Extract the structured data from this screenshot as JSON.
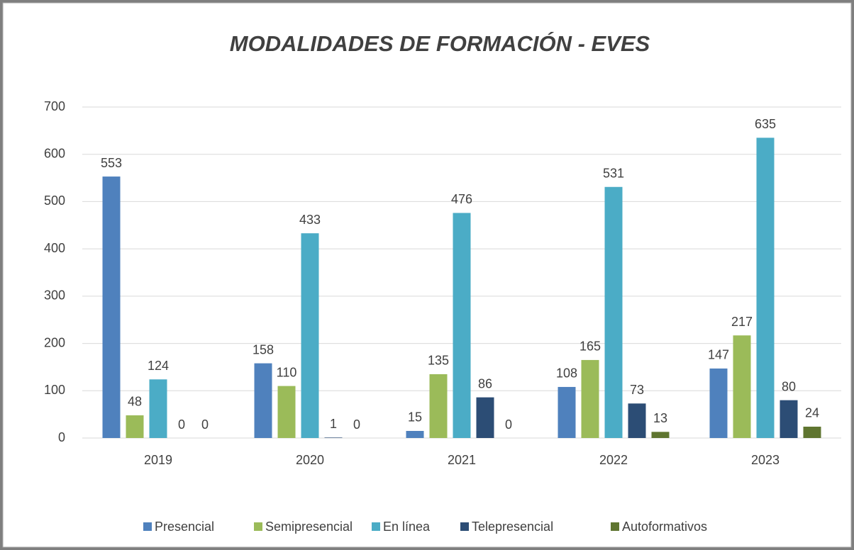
{
  "chart_data": {
    "type": "bar",
    "title": "MODALIDADES DE FORMACIÓN - EVES",
    "categories": [
      "2019",
      "2020",
      "2021",
      "2022",
      "2023"
    ],
    "series": [
      {
        "name": "Presencial",
        "color": "#4f81bd",
        "values": [
          553,
          158,
          15,
          108,
          147
        ]
      },
      {
        "name": "Semipresencial",
        "color": "#9bbb59",
        "values": [
          48,
          110,
          135,
          165,
          217
        ]
      },
      {
        "name": "En línea",
        "color": "#4bacc6",
        "values": [
          124,
          433,
          476,
          531,
          635
        ]
      },
      {
        "name": "Telepresencial",
        "color": "#2c4d75",
        "values": [
          0,
          1,
          86,
          73,
          80
        ]
      },
      {
        "name": "Autoformativos",
        "color": "#5f7530",
        "values": [
          0,
          0,
          0,
          13,
          24
        ]
      }
    ],
    "ylim": [
      0,
      700
    ],
    "yticks": [
      0,
      100,
      200,
      300,
      400,
      500,
      600,
      700
    ],
    "grid": true,
    "legend": "bottom"
  }
}
